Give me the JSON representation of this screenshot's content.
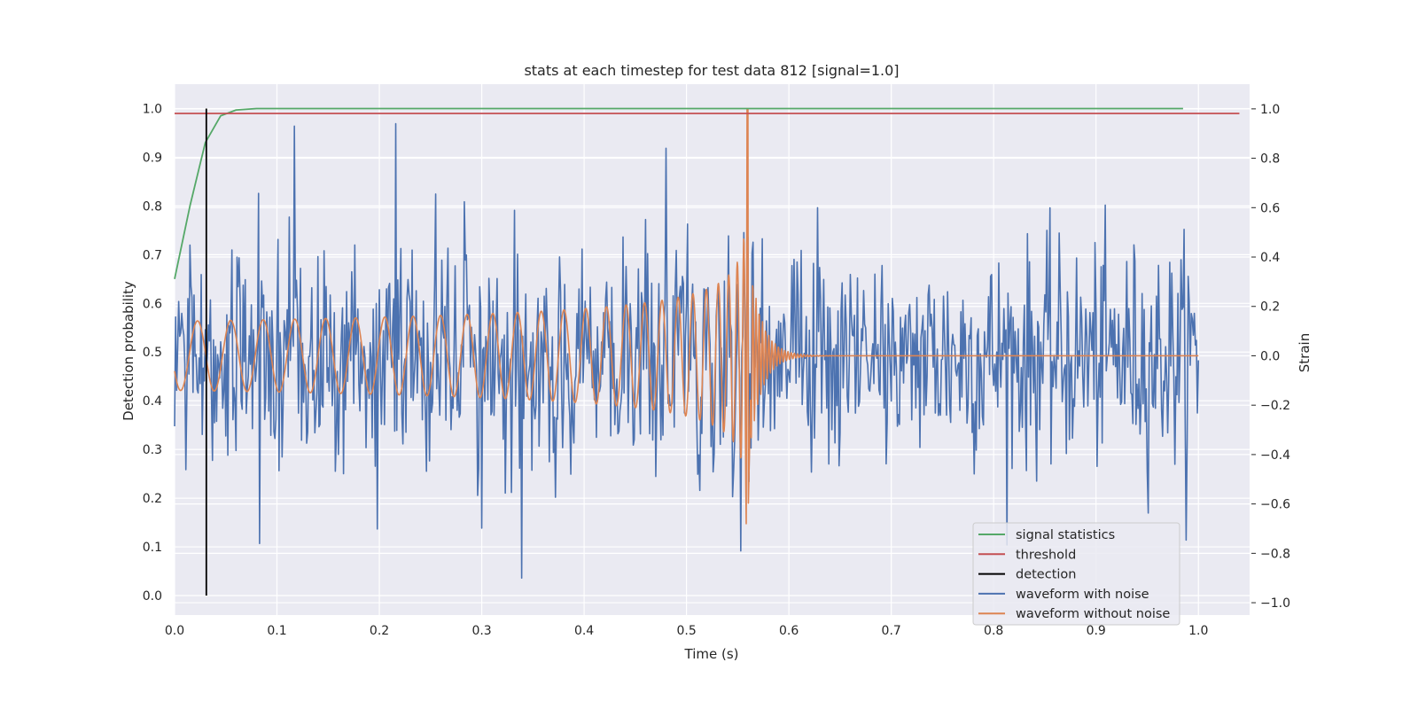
{
  "chart_data": {
    "type": "line",
    "title": "stats at each timestep for test data 812 [signal=1.0]",
    "xlabel": "Time (s)",
    "ylabel_left": "Detection probability",
    "ylabel_right": "Strain",
    "xlim": [
      0.0,
      1.05
    ],
    "ylim_left": [
      -0.04,
      1.05
    ],
    "ylim_right": [
      -1.05,
      1.1
    ],
    "x_ticks": [
      "0.0",
      "0.1",
      "0.2",
      "0.3",
      "0.4",
      "0.5",
      "0.6",
      "0.7",
      "0.8",
      "0.9",
      "1.0"
    ],
    "y_left_ticks": [
      "0.0",
      "0.1",
      "0.2",
      "0.3",
      "0.4",
      "0.5",
      "0.6",
      "0.7",
      "0.8",
      "0.9",
      "1.0"
    ],
    "y_right_ticks": [
      "−1.0",
      "−0.8",
      "−0.6",
      "−0.4",
      "−0.2",
      "0.0",
      "0.2",
      "0.4",
      "0.6",
      "0.8",
      "1.0"
    ],
    "grid": true,
    "legend_position": "bottom-right",
    "series": [
      {
        "name": "signal statistics",
        "axis": "left",
        "color": "#55a868",
        "x": [
          0.0,
          0.015,
          0.03,
          0.045,
          0.06,
          0.08,
          0.1,
          0.2,
          0.3,
          0.4,
          0.5,
          0.6,
          0.7,
          0.8,
          0.9,
          0.985
        ],
        "y": [
          0.65,
          0.8,
          0.93,
          0.985,
          0.997,
          1.0,
          1.0,
          1.0,
          1.0,
          1.0,
          1.0,
          1.0,
          1.0,
          1.0,
          1.0,
          1.0
        ]
      },
      {
        "name": "threshold",
        "axis": "left",
        "color": "#c44e52",
        "x": [
          0.0,
          1.04
        ],
        "y": [
          0.99,
          0.99
        ]
      },
      {
        "name": "detection",
        "axis": "left",
        "color": "#000000",
        "x": [
          0.031,
          0.031
        ],
        "y": [
          0.0,
          1.0
        ]
      },
      {
        "name": "waveform with noise",
        "axis": "right",
        "color": "#4c72b0",
        "generator": "noise around the clean waveform, std ~0.22, 1000 samples on [0, 1.0]",
        "highlights": [
          {
            "x": 0.117,
            "y": 0.93
          },
          {
            "x": 0.216,
            "y": 0.94
          },
          {
            "x": 0.339,
            "y": -0.9
          },
          {
            "x": 0.083,
            "y": -0.76
          },
          {
            "x": 0.553,
            "y": -0.79
          }
        ]
      },
      {
        "name": "waveform without noise",
        "axis": "right",
        "color": "#dd8452",
        "generator": "inspiral chirp: amplitude 0.14 -> 1.0, frequency 30 Hz -> 300+ Hz, merger at t=0.56 s, ringdown to 0",
        "merger_time": 0.56,
        "peak_strain": 1.0
      }
    ]
  }
}
